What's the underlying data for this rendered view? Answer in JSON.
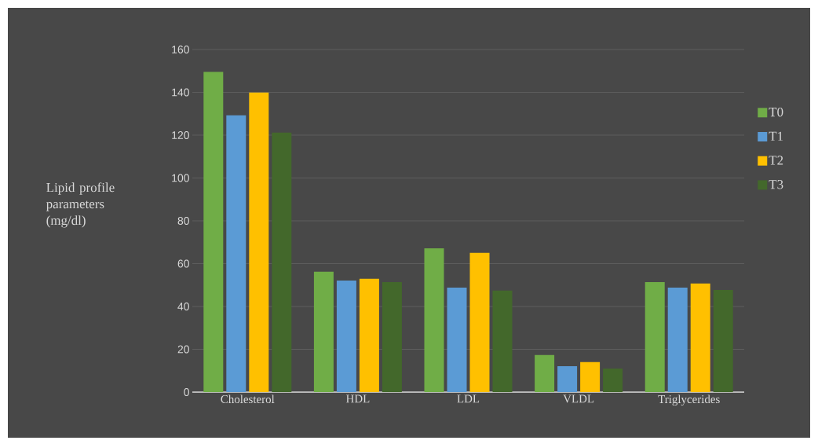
{
  "chart_data": {
    "type": "bar",
    "ylabel": "Lipid profile parameters (mg/dl)",
    "categories": [
      "Cholesterol",
      "HDL",
      "LDL",
      "VLDL",
      "Triglycerides"
    ],
    "series": [
      {
        "name": "T0",
        "color": "#70ad47",
        "values": [
          149.5,
          56.2,
          67.2,
          17.3,
          51.4
        ]
      },
      {
        "name": "T1",
        "color": "#5b9bd5",
        "values": [
          129.3,
          52.1,
          48.8,
          12.1,
          48.8
        ]
      },
      {
        "name": "T2",
        "color": "#ffc000",
        "values": [
          139.9,
          52.9,
          65,
          14,
          50.7
        ]
      },
      {
        "name": "T3",
        "color": "#43682b",
        "values": [
          121.2,
          51.4,
          47.4,
          11,
          47.7
        ]
      }
    ],
    "ylim": [
      0,
      160
    ],
    "yticks": [
      0,
      20,
      40,
      60,
      80,
      100,
      120,
      140,
      160
    ],
    "grid": "y",
    "legend": "right"
  }
}
